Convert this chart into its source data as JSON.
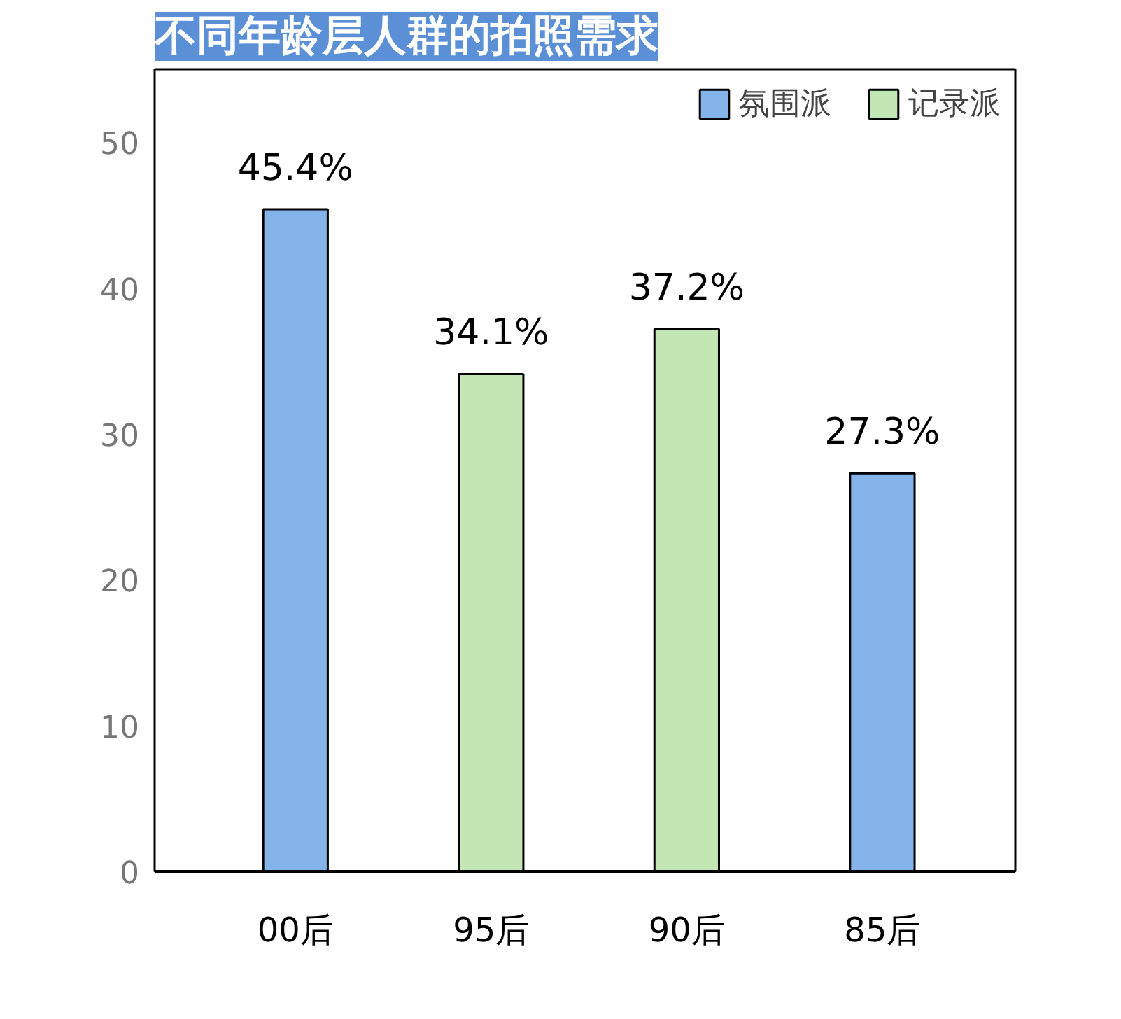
{
  "chart_data": {
    "type": "bar",
    "title": "不同年龄层人群的拍照需求",
    "categories": [
      "00后",
      "95后",
      "90后",
      "85后"
    ],
    "series": [
      {
        "name": "氛围派",
        "color": "#85b4ea",
        "values": [
          45.4,
          null,
          null,
          27.3
        ],
        "value_labels": [
          "45.4%",
          null,
          null,
          "27.3%"
        ]
      },
      {
        "name": "记录派",
        "color": "#c2e6b4",
        "values": [
          null,
          34.1,
          37.2,
          null
        ],
        "value_labels": [
          null,
          "34.1%",
          "37.2%",
          null
        ]
      }
    ],
    "ylim": [
      0,
      55
    ],
    "yticks": [
      0,
      10,
      20,
      30,
      40,
      50
    ],
    "grid": false,
    "legend": "top right"
  }
}
